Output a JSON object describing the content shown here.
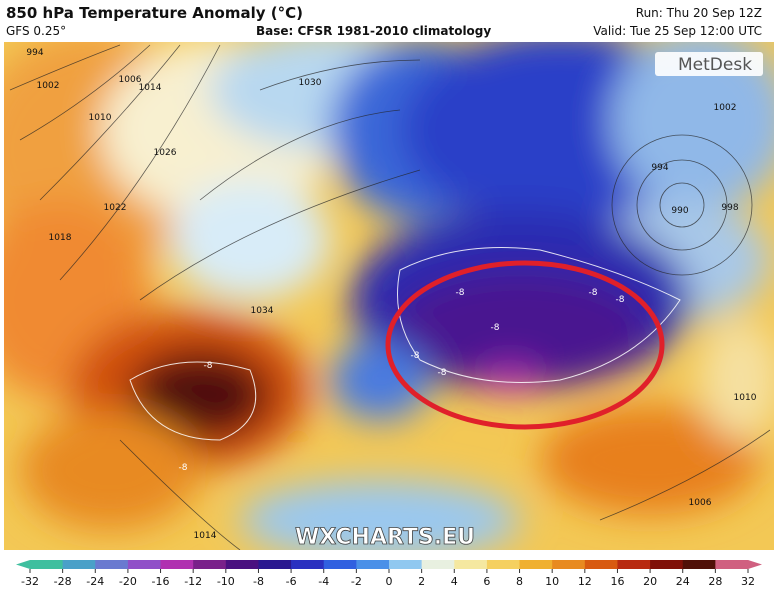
{
  "header": {
    "title": "850 hPa Temperature Anomaly (°C)",
    "model": "GFS 0.25°",
    "base": "Base: CFSR 1981-2010 climatology",
    "run": "Run: Thu 20 Sep 12Z",
    "valid": "Valid: Tue 25 Sep 12:00 UTC"
  },
  "logo": "MetDesk",
  "watermark": "WXCHARTS.EU",
  "isobar_labels": [
    994,
    1002,
    1006,
    1014,
    1010,
    1030,
    1026,
    1022,
    1018,
    1034,
    994,
    990,
    998,
    1002,
    1006,
    1014,
    1010
  ],
  "anomaly_labels": [
    -8,
    -8,
    -8,
    -8,
    -8,
    -8,
    -8,
    -8
  ],
  "colorbar": {
    "ticks": [
      -32,
      -28,
      -24,
      -20,
      -16,
      -12,
      -10,
      -8,
      -6,
      -4,
      -2,
      0,
      2,
      4,
      6,
      8,
      10,
      12,
      16,
      20,
      24,
      28,
      32
    ],
    "colors": [
      "#3fbf9f",
      "#4aa0c8",
      "#6a7ad0",
      "#9050c8",
      "#b030b0",
      "#7a208a",
      "#4a1080",
      "#2a1890",
      "#2a30c0",
      "#3060e0",
      "#4a90e8",
      "#90c8f0",
      "#e8f0e0",
      "#f5e8a0",
      "#f5d060",
      "#f0b030",
      "#e88a20",
      "#d85a10",
      "#b82a10",
      "#801008",
      "#501008",
      "#d06080"
    ]
  }
}
